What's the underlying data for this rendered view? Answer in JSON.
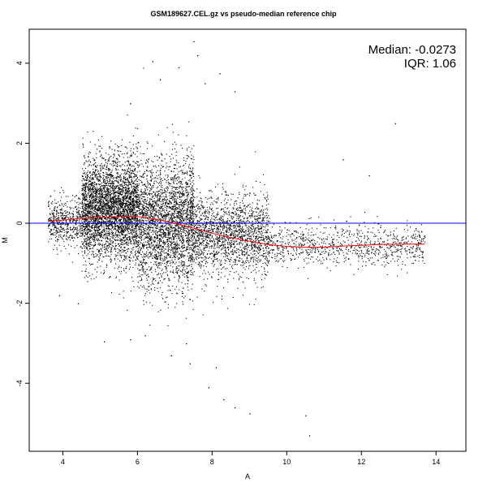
{
  "chart_data": {
    "type": "scatter",
    "title": "GSM189627.CEL.gz vs pseudo-median reference chip",
    "xlabel": "A",
    "ylabel": "M",
    "xlim": [
      3.1,
      14.8
    ],
    "ylim": [
      -5.7,
      4.85
    ],
    "x_ticks": [
      4,
      6,
      8,
      10,
      12,
      14
    ],
    "y_ticks": [
      -4,
      -2,
      0,
      2,
      4
    ],
    "x_tick_labels": [
      "4",
      "6",
      "8",
      "10",
      "12",
      "14"
    ],
    "y_tick_labels": [
      "-4",
      "-2",
      "0",
      "2",
      "4"
    ],
    "stats": {
      "median": "Median: -0.0273",
      "iqr": "IQR: 1.06"
    },
    "reference_line": {
      "y": 0,
      "color": "#0000ff"
    },
    "loess_curve": {
      "color": "#ff0000",
      "x": [
        3.6,
        4.0,
        4.5,
        5.0,
        5.5,
        6.0,
        6.5,
        7.0,
        7.5,
        8.0,
        8.5,
        9.0,
        9.5,
        10.0,
        10.5,
        11.0,
        11.5,
        12.0,
        12.5,
        13.0,
        13.7
      ],
      "y": [
        0.05,
        0.08,
        0.12,
        0.15,
        0.17,
        0.17,
        0.1,
        0.0,
        -0.12,
        -0.25,
        -0.36,
        -0.45,
        -0.53,
        -0.58,
        -0.6,
        -0.6,
        -0.57,
        -0.55,
        -0.53,
        -0.52,
        -0.52
      ]
    },
    "points": {
      "color": "#000000",
      "description_density": [
        {
          "x_range": [
            3.6,
            4.5
          ],
          "m_center": 0.05,
          "m_spread": 0.35,
          "count": 500
        },
        {
          "x_range": [
            4.5,
            6.0
          ],
          "m_center": 0.35,
          "m_spread": 0.75,
          "count": 3800
        },
        {
          "x_range": [
            6.0,
            7.5
          ],
          "m_center": 0.0,
          "m_spread": 0.9,
          "count": 2800
        },
        {
          "x_range": [
            7.5,
            9.5
          ],
          "m_center": -0.3,
          "m_spread": 0.6,
          "count": 1800
        },
        {
          "x_range": [
            9.5,
            13.7
          ],
          "m_center": -0.55,
          "m_spread": 0.3,
          "count": 900
        }
      ],
      "outliers": [
        {
          "x": 7.5,
          "y": 4.55
        },
        {
          "x": 7.6,
          "y": 4.2
        },
        {
          "x": 6.4,
          "y": 4.05
        },
        {
          "x": 7.1,
          "y": 3.9
        },
        {
          "x": 8.2,
          "y": 3.75
        },
        {
          "x": 6.6,
          "y": 3.6
        },
        {
          "x": 7.8,
          "y": 3.5
        },
        {
          "x": 5.8,
          "y": 3.0
        },
        {
          "x": 8.6,
          "y": 3.3
        },
        {
          "x": 12.9,
          "y": 2.5
        },
        {
          "x": 11.5,
          "y": 1.6
        },
        {
          "x": 12.2,
          "y": 1.2
        },
        {
          "x": 5.1,
          "y": -2.95
        },
        {
          "x": 5.8,
          "y": -2.9
        },
        {
          "x": 6.9,
          "y": -3.3
        },
        {
          "x": 7.4,
          "y": -3.5
        },
        {
          "x": 7.9,
          "y": -4.1
        },
        {
          "x": 8.1,
          "y": -3.6
        },
        {
          "x": 8.3,
          "y": -4.4
        },
        {
          "x": 8.6,
          "y": -4.6
        },
        {
          "x": 9.0,
          "y": -4.75
        },
        {
          "x": 10.5,
          "y": -4.8
        },
        {
          "x": 10.6,
          "y": -5.3
        },
        {
          "x": 7.3,
          "y": -3.0
        },
        {
          "x": 6.2,
          "y": -2.8
        },
        {
          "x": 3.9,
          "y": -1.8
        },
        {
          "x": 4.4,
          "y": -2.0
        }
      ]
    }
  }
}
